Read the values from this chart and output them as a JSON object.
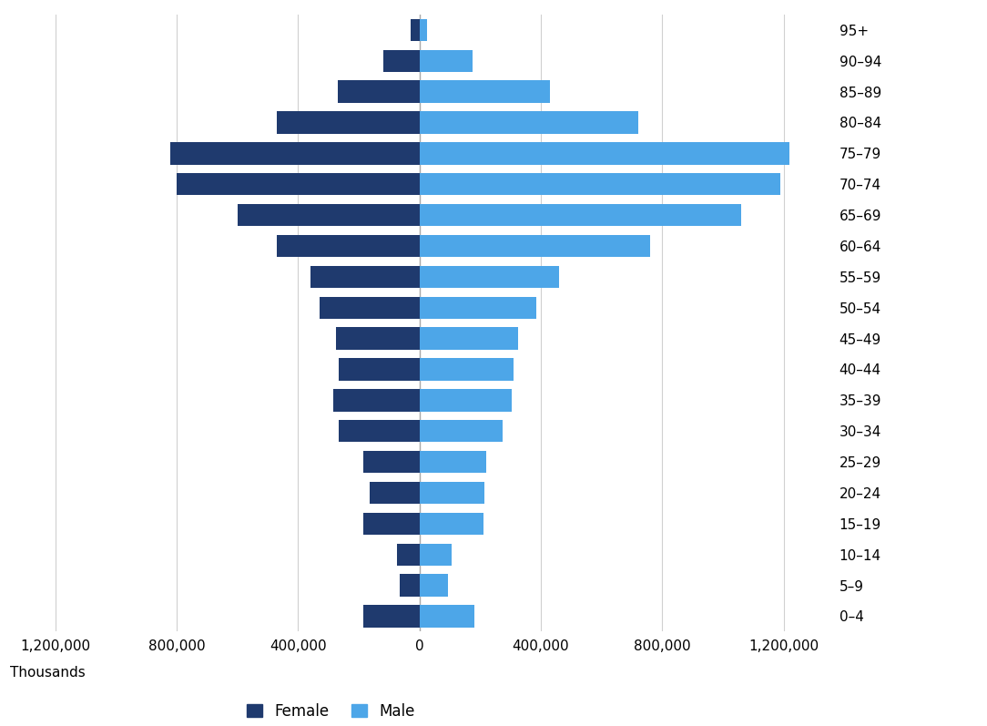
{
  "age_groups": [
    "0–4",
    "5–9",
    "10–14",
    "15–19",
    "20–24",
    "25–29",
    "30–34",
    "35–39",
    "40–44",
    "45–49",
    "50–54",
    "55–59",
    "60–64",
    "65–69",
    "70–74",
    "75–79",
    "80–84",
    "85–89",
    "90–94",
    "95+"
  ],
  "female_values": [
    -185000,
    -65000,
    -75000,
    -185000,
    -165000,
    -185000,
    -265000,
    -285000,
    -265000,
    -275000,
    -330000,
    -360000,
    -470000,
    -600000,
    -800000,
    -820000,
    -470000,
    -270000,
    -120000,
    -30000
  ],
  "male_values": [
    180000,
    95000,
    105000,
    210000,
    215000,
    220000,
    275000,
    305000,
    310000,
    325000,
    385000,
    460000,
    760000,
    1060000,
    1190000,
    1220000,
    720000,
    430000,
    175000,
    25000
  ],
  "female_color": "#1f3a6e",
  "male_color": "#4da6e8",
  "xlim": [
    -1350000,
    1350000
  ],
  "xticks": [
    -1200000,
    -800000,
    -400000,
    0,
    400000,
    800000,
    1200000
  ],
  "xtick_labels": [
    "1,200,000",
    "800,000",
    "400,000",
    "0",
    "400,000",
    "800,000",
    "1,200,000"
  ],
  "ylabel_text": "Thousands",
  "background_color": "#ffffff",
  "grid_color": "#d0d0d0",
  "bar_height": 0.72,
  "legend_female_label": "Female",
  "legend_male_label": "Male"
}
